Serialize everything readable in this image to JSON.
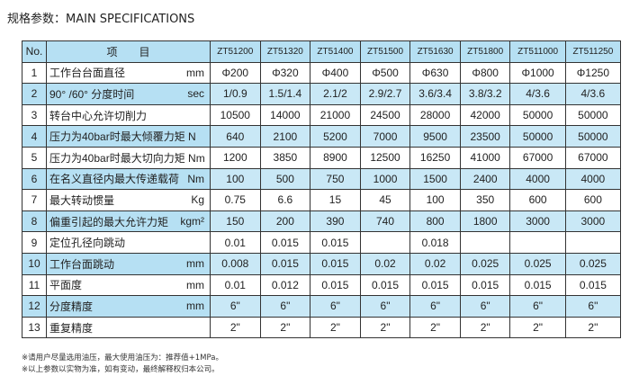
{
  "title": "规格参数：MAIN SPECIFICATIONS",
  "header": {
    "no": "No.",
    "item": "项　　目",
    "models": [
      "ZT51200",
      "ZT51320",
      "ZT51400",
      "ZT51500",
      "ZT51630",
      "ZT51800",
      "ZT511000",
      "ZT511250"
    ]
  },
  "rows": [
    {
      "no": "1",
      "item": "工作台台面直径",
      "unit": "mm",
      "values": [
        "Φ200",
        "Φ320",
        "Φ400",
        "Φ500",
        "Φ630",
        "Φ800",
        "Φ1000",
        "Φ1250"
      ]
    },
    {
      "no": "2",
      "item": "90° /60° 分度时间",
      "unit": "sec",
      "values": [
        "1/0.9",
        "1.5/1.4",
        "2.1/2",
        "2.9/2.7",
        "3.6/3.4",
        "3.8/3.2",
        "4/3.6",
        "4/3.6"
      ]
    },
    {
      "no": "3",
      "item": "转台中心允许切削力",
      "unit": "",
      "values": [
        "10500",
        "14000",
        "21000",
        "24500",
        "28000",
        "42000",
        "50000",
        "50000"
      ]
    },
    {
      "no": "4",
      "item": "压力为40bar时最大倾覆力矩 N",
      "unit": "",
      "values": [
        "640",
        "2100",
        "5200",
        "7000",
        "9500",
        "23500",
        "50000",
        "50000"
      ]
    },
    {
      "no": "5",
      "item": "压力为40bar时最大切向力矩 Nm",
      "unit": "",
      "values": [
        "1200",
        "3850",
        "8900",
        "12500",
        "16250",
        "41000",
        "67000",
        "67000"
      ]
    },
    {
      "no": "6",
      "item": "在名义直径内最大传递载荷",
      "unit": "Nm",
      "values": [
        "100",
        "500",
        "750",
        "1000",
        "1500",
        "2400",
        "4000",
        "4000"
      ]
    },
    {
      "no": "7",
      "item": "最大转动惯量",
      "unit": "Kg",
      "values": [
        "0.75",
        "6.6",
        "15",
        "45",
        "100",
        "350",
        "600",
        "600"
      ]
    },
    {
      "no": "8",
      "item": "偏重引起的最大允许力矩",
      "unit": "kgm²",
      "values": [
        "150",
        "200",
        "390",
        "740",
        "800",
        "1800",
        "3000",
        "3000"
      ]
    },
    {
      "no": "9",
      "item": "定位孔径向跳动",
      "unit": "",
      "values": [
        "0.01",
        "0.015",
        "0.015",
        "",
        "0.018",
        "",
        "",
        ""
      ]
    },
    {
      "no": "10",
      "item": "工作台面跳动",
      "unit": "mm",
      "values": [
        "0.008",
        "0.015",
        "0.015",
        "0.02",
        "0.02",
        "0.025",
        "0.025",
        "0.025"
      ]
    },
    {
      "no": "11",
      "item": "平面度",
      "unit": "mm",
      "values": [
        "0.01",
        "0.012",
        "0.015",
        "0.015",
        "0.015",
        "0.015",
        "0.015",
        "0.015"
      ]
    },
    {
      "no": "12",
      "item": "分度精度",
      "unit": "mm",
      "values": [
        "6\"",
        "6\"",
        "6\"",
        "6\"",
        "6\"",
        "6\"",
        "6\"",
        "6\""
      ]
    },
    {
      "no": "13",
      "item": "重复精度",
      "unit": "",
      "values": [
        "2\"",
        "2\"",
        "2\"",
        "2\"",
        "2\"",
        "2\"",
        "2\"",
        "2\""
      ]
    }
  ],
  "notes": [
    "※请用户尽量选用油压，最大使用油压为：推荐值+1MPa。",
    "※以上参数以实物为准，如有变动，最终解释权归本公司。"
  ]
}
